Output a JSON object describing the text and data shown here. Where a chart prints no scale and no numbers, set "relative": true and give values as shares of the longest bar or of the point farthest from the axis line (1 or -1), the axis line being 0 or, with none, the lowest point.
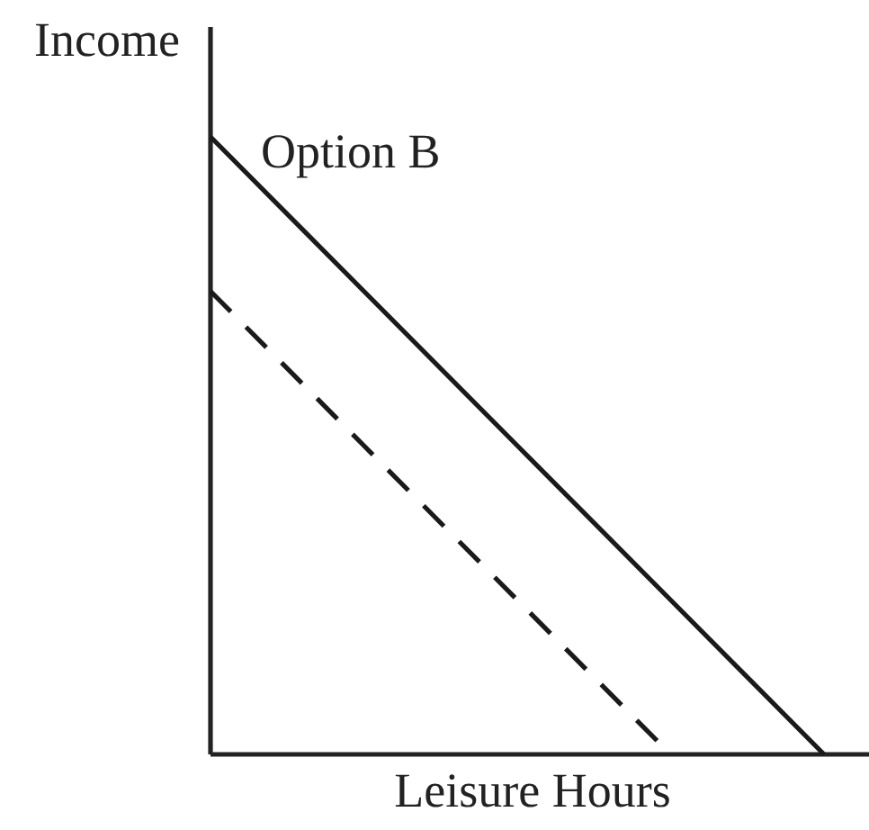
{
  "chart_data": {
    "type": "line",
    "relative": true,
    "xlabel": "Leisure Hours",
    "ylabel": "Income",
    "categories": [
      null,
      null,
      null,
      null,
      null
    ],
    "series": [
      {
        "name": "Option B",
        "color": "#1a1a1a",
        "line_style": "solid",
        "values": [
          1,
          0.75,
          0.5,
          0.25,
          0
        ]
      },
      {
        "color": "#1a1a1a",
        "line_style": "dashed",
        "values": [
          0.75,
          0.5,
          0.25,
          0,
          null
        ]
      }
    ]
  }
}
